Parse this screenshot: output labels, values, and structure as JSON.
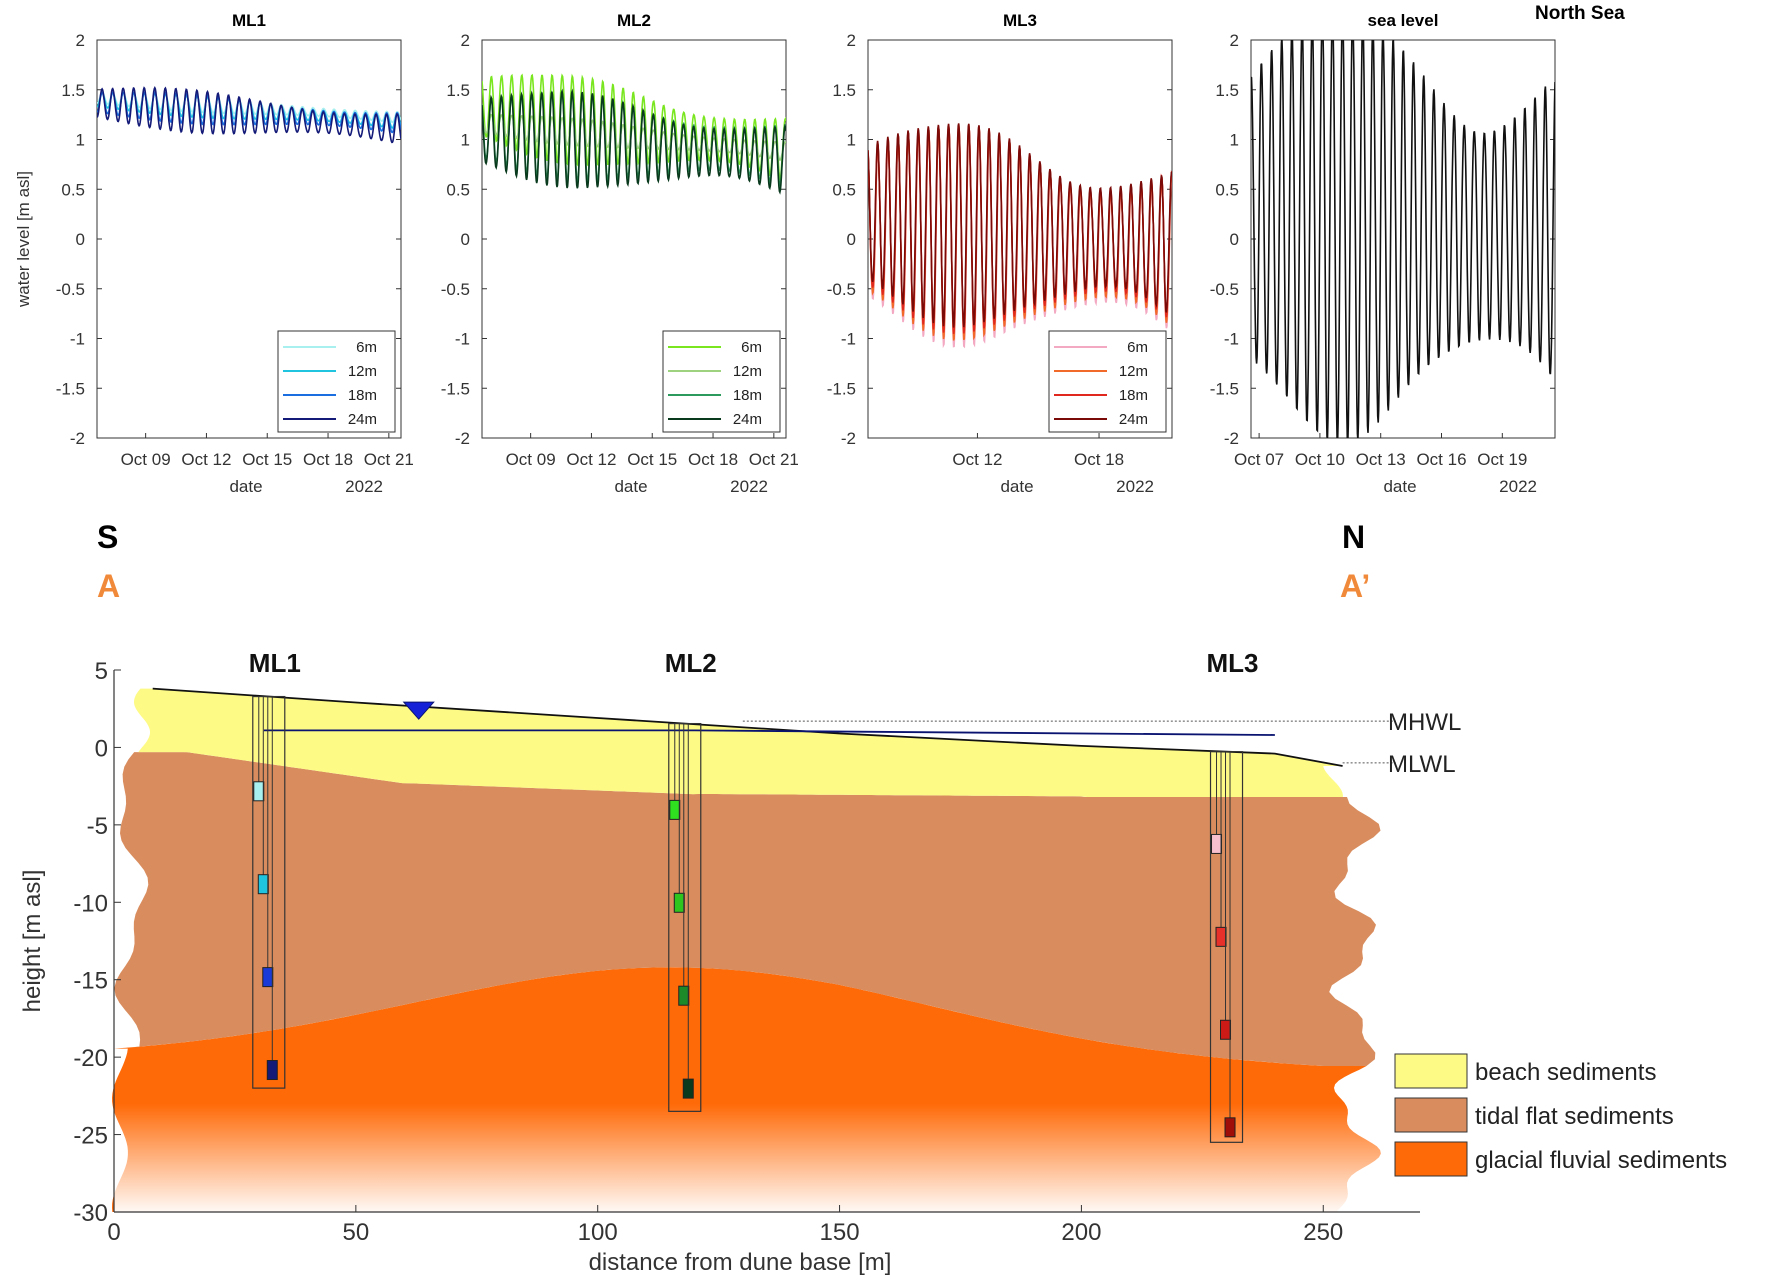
{
  "header": {
    "north_sea_label": "North Sea",
    "south_label": "S",
    "north_label": "N",
    "section_start": "A",
    "section_end": "A’"
  },
  "colors": {
    "beach": "#fdfa86",
    "tidal": "#d98d5e",
    "glacial": "#ff6a08",
    "water_table": "#0a1470",
    "orange_text": "#f08a3a"
  },
  "chart_data": [
    {
      "type": "line",
      "title": "ML1",
      "ylabel": "water level [m asl]",
      "xlabel": "date",
      "year_label": "2022",
      "ylim": [
        -2,
        2
      ],
      "yticks": [
        "2",
        "1.5",
        "1",
        "0.5",
        "0",
        "-0.5",
        "-1",
        "-1.5",
        "-2"
      ],
      "xticks": [
        "Oct 09",
        "Oct 12",
        "Oct 15",
        "Oct 18",
        "Oct 21"
      ],
      "xtick_days": [
        9,
        12,
        15,
        18,
        21
      ],
      "xlim_days": [
        6.6,
        21.6
      ],
      "series": [
        {
          "name": "6m",
          "color": "#a8efef",
          "start": 1.42,
          "end": 1.22,
          "amp": 0.06
        },
        {
          "name": "12m",
          "color": "#20c4de",
          "start": 1.4,
          "end": 1.18,
          "amp": 0.08
        },
        {
          "name": "18m",
          "color": "#1a6ee0",
          "start": 1.37,
          "end": 1.16,
          "amp": 0.11
        },
        {
          "name": "24m",
          "color": "#141a78",
          "start": 1.36,
          "end": 1.1,
          "amp": 0.16
        }
      ]
    },
    {
      "type": "line",
      "title": "ML2",
      "ylabel": "",
      "xlabel": "date",
      "year_label": "2022",
      "ylim": [
        -2,
        2
      ],
      "yticks": [
        "2",
        "1.5",
        "1",
        "0.5",
        "0",
        "-0.5",
        "-1",
        "-1.5",
        "-2"
      ],
      "xticks": [
        "Oct 09",
        "Oct 12",
        "Oct 15",
        "Oct 18",
        "Oct 21"
      ],
      "xtick_days": [
        9,
        12,
        15,
        18,
        21
      ],
      "xlim_days": [
        6.6,
        21.6
      ],
      "series": [
        {
          "name": "6m",
          "color": "#7ae61f",
          "start": 1.32,
          "end": 0.9,
          "amp": 0.33
        },
        {
          "name": "12m",
          "color": "#9ed27e",
          "start": 1.16,
          "end": 0.88,
          "amp": 0.1
        },
        {
          "name": "18m",
          "color": "#2c9a5c",
          "start": 1.1,
          "end": 0.84,
          "amp": 0.33
        },
        {
          "name": "24m",
          "color": "#0a3a1e",
          "start": 1.08,
          "end": 0.8,
          "amp": 0.36
        }
      ]
    },
    {
      "type": "line",
      "title": "ML3",
      "ylabel": "",
      "xlabel": "date",
      "year_label": "2022",
      "ylim": [
        -2,
        2
      ],
      "yticks": [
        "2",
        "1.5",
        "1",
        "0.5",
        "0",
        "-0.5",
        "-1",
        "-1.5",
        "-2"
      ],
      "xticks": [
        "Oct 12",
        "Oct 18"
      ],
      "xtick_days": [
        12,
        18
      ],
      "xlim_days": [
        6.6,
        21.6
      ],
      "series": [
        {
          "name": "6m",
          "color": "#f4a9c2",
          "start": 0.12,
          "end": -0.16,
          "amp": 0.82
        },
        {
          "name": "12m",
          "color": "#f26a2a",
          "start": 0.16,
          "end": -0.12,
          "amp": 0.8
        },
        {
          "name": "18m",
          "color": "#e0281e",
          "start": 0.2,
          "end": -0.08,
          "amp": 0.78
        },
        {
          "name": "24m",
          "color": "#7a0a08",
          "start": 0.24,
          "end": -0.05,
          "amp": 0.76
        }
      ]
    },
    {
      "type": "line",
      "title": "sea level",
      "ylabel": "",
      "xlabel": "date",
      "year_label": "2022",
      "ylim": [
        -2,
        2
      ],
      "yticks": [
        "2",
        "1.5",
        "1",
        "0.5",
        "0",
        "-0.5",
        "-1",
        "-1.5",
        "-2"
      ],
      "xticks": [
        "Oct 07",
        "Oct 10",
        "Oct 13",
        "Oct 16",
        "Oct 19"
      ],
      "xtick_days": [
        7,
        10,
        13,
        16,
        19
      ],
      "xlim_days": [
        6.6,
        21.6
      ],
      "series": [
        {
          "name": "sea level",
          "color": "#111111",
          "start": 0.2,
          "end": 0.05,
          "amp": 1.6
        }
      ]
    },
    {
      "type": "area",
      "title": "",
      "ylabel": "height [m asl]",
      "xlabel": "distance from dune base [m]",
      "xlim": [
        0,
        270
      ],
      "ylim": [
        -30,
        5
      ],
      "xticks": [
        "0",
        "50",
        "100",
        "150",
        "200",
        "250"
      ],
      "yticks": [
        "5",
        "0",
        "-5",
        "-10",
        "-15",
        "-20",
        "-25",
        "-30"
      ],
      "layers": [
        {
          "name": "beach sediments",
          "color": "#fdfa86"
        },
        {
          "name": "tidal flat sediments",
          "color": "#d98d5e"
        },
        {
          "name": "glacial fluvial sediments",
          "color": "#ff6a08"
        }
      ],
      "surface": {
        "x": [
          8,
          50,
          100,
          150,
          200,
          240,
          254
        ],
        "y": [
          3.8,
          2.9,
          1.9,
          0.9,
          0.1,
          -0.4,
          -1.2
        ]
      },
      "water_table": {
        "x": [
          31,
          120,
          240
        ],
        "y": [
          1.1,
          1.1,
          0.8
        ]
      },
      "reference_lines": [
        {
          "name": "MHWL",
          "y": 1.7
        },
        {
          "name": "MLWL",
          "y": -1.0
        }
      ],
      "wells": [
        {
          "name": "ML1",
          "x": 32,
          "bottom": -22,
          "screens": [
            {
              "depth": "6m",
              "y": -2.8,
              "color": "#a8efef"
            },
            {
              "depth": "12m",
              "y": -8.8,
              "color": "#20c4de"
            },
            {
              "depth": "18m",
              "y": -14.8,
              "color": "#1a3ad8"
            },
            {
              "depth": "24m",
              "y": -20.8,
              "color": "#141a78"
            }
          ]
        },
        {
          "name": "ML2",
          "x": 118,
          "bottom": -23.5,
          "screens": [
            {
              "depth": "6m",
              "y": -4.0,
              "color": "#2ee01f"
            },
            {
              "depth": "12m",
              "y": -10.0,
              "color": "#2ec51f"
            },
            {
              "depth": "18m",
              "y": -16.0,
              "color": "#1d8a2a"
            },
            {
              "depth": "24m",
              "y": -22.0,
              "color": "#0a3a1e"
            }
          ]
        },
        {
          "name": "ML3",
          "x": 230,
          "bottom": -25.5,
          "screens": [
            {
              "depth": "6m",
              "y": -6.2,
              "color": "#f8c0cc"
            },
            {
              "depth": "12m",
              "y": -12.2,
              "color": "#e8302a"
            },
            {
              "depth": "18m",
              "y": -18.2,
              "color": "#cc1b16"
            },
            {
              "depth": "24m",
              "y": -24.5,
              "color": "#a00e0a"
            }
          ]
        }
      ]
    }
  ]
}
